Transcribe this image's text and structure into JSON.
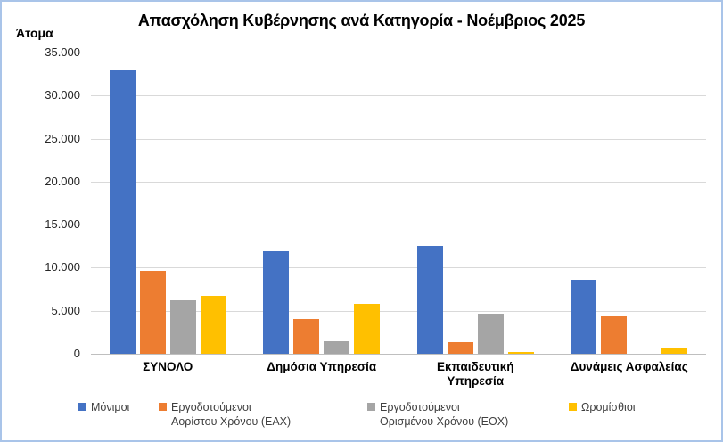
{
  "title": "Απασχόληση Κυβέρνησης ανά Κατηγορία - Νοέμβριος 2025",
  "y_axis_title": "Άτομα",
  "chart_data": {
    "type": "bar",
    "title": "Απασχόληση Κυβέρνησης ανά Κατηγορία - Νοέμβριος 2025",
    "ylabel": "Άτομα",
    "xlabel": "",
    "grid": true,
    "legend_position": "bottom",
    "ylim": [
      0,
      35000
    ],
    "ytick_step": 5000,
    "ytick_labels": [
      "0",
      "5.000",
      "10.000",
      "15.000",
      "20.000",
      "25.000",
      "30.000",
      "35.000"
    ],
    "categories": [
      {
        "label": "ΣΥΝΟΛΟ",
        "lines": [
          "ΣΥΝΟΛΟ"
        ]
      },
      {
        "label": "Δημόσια Υπηρεσία",
        "lines": [
          "Δημόσια Υπηρεσία"
        ]
      },
      {
        "label": "Εκπαιδευτική Υπηρεσία",
        "lines": [
          "Εκπαιδευτική",
          "Υπηρεσία"
        ]
      },
      {
        "label": "Δυνάμεις Ασφαλείας",
        "lines": [
          "Δυνάμεις Ασφαλείας"
        ]
      }
    ],
    "series": [
      {
        "name": "Μόνιμοι",
        "legend_lines": [
          "Μόνιμοι"
        ],
        "color": "#4472c4",
        "values": [
          33000,
          11900,
          12500,
          8600
        ]
      },
      {
        "name": "Εργοδοτούμενοι Αορίστου Χρόνου (ΕΑΧ)",
        "legend_lines": [
          "Εργοδοτούμενοι",
          "Αορίστου Χρόνου (ΕΑΧ)"
        ],
        "color": "#ed7d31",
        "values": [
          9600,
          4000,
          1300,
          4400
        ]
      },
      {
        "name": "Εργοδοτούμενοι Ορισμένου Χρόνου (ΕΟΧ)",
        "legend_lines": [
          "Εργοδοτούμενοι",
          "Ορισμένου Χρόνου (ΕΟΧ)"
        ],
        "color": "#a5a5a5",
        "values": [
          6200,
          1400,
          4700,
          0
        ]
      },
      {
        "name": "Ωρομίσθιοι",
        "legend_lines": [
          "Ωρομίσθιοι"
        ],
        "color": "#ffc000",
        "values": [
          6700,
          5800,
          200,
          700
        ]
      }
    ],
    "colors": {
      "gridline": "#d9d9d9",
      "axis_line": "#bfbfbf",
      "frame_border": "#a9c4e9",
      "tick_text": "#262626",
      "legend_text": "#404040"
    }
  }
}
